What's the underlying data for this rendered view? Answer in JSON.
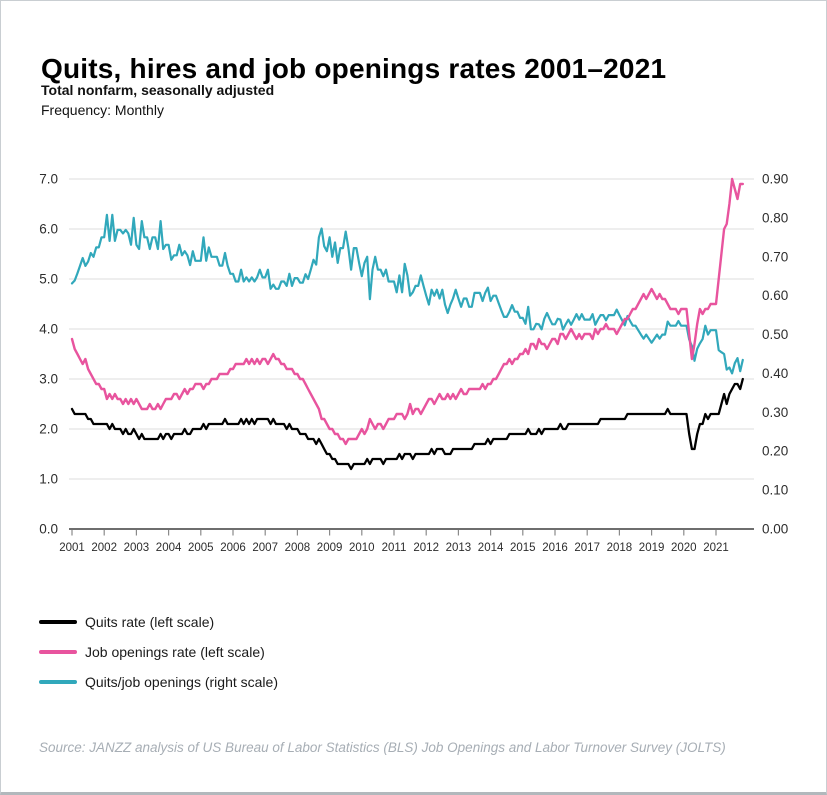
{
  "header": {
    "title": "Quits, hires and job openings rates 2001–2021",
    "subtitle": "Total nonfarm, seasonally adjusted",
    "frequency": "Frequency: Monthly"
  },
  "legend": [
    {
      "label": "Quits rate (left scale)",
      "color": "#000000"
    },
    {
      "label": "Job openings rate (left scale)",
      "color": "#e8549e"
    },
    {
      "label": "Quits/job openings (right scale)",
      "color": "#31a8bb"
    }
  ],
  "source": "Source: JANZZ analysis of US Bureau of Labor Statistics (BLS) Job Openings and Labor Turnover Survey (JOLTS)",
  "colors": {
    "quits": "#000000",
    "job_openings": "#e8549e",
    "ratio": "#31a8bb",
    "gridline": "#dcdcdc",
    "axis": "#6e6e6e",
    "tick": "#8a8a8a",
    "axis_label": "#2d2d2d"
  },
  "chart_data": {
    "type": "line",
    "title": "Quits, hires and job openings rates 2001–2021",
    "frequency": "monthly",
    "x_start": "2001-01",
    "x_end": "2021-11",
    "x_tick_years": [
      "2001",
      "2002",
      "2003",
      "2004",
      "2005",
      "2006",
      "2007",
      "2008",
      "2009",
      "2010",
      "2011",
      "2012",
      "2013",
      "2014",
      "2015",
      "2016",
      "2017",
      "2018",
      "2019",
      "2020",
      "2021"
    ],
    "grid": true,
    "legend_position": "bottom-left",
    "left_axis": {
      "min": 0,
      "max": 7,
      "ticks": [
        "0.0",
        "1.0",
        "2.0",
        "3.0",
        "4.0",
        "5.0",
        "6.0",
        "7.0"
      ]
    },
    "right_axis": {
      "min": 0,
      "max": 0.9,
      "ticks": [
        "0.00",
        "0.10",
        "0.20",
        "0.30",
        "0.40",
        "0.50",
        "0.60",
        "0.70",
        "0.80",
        "0.90"
      ]
    },
    "series": [
      {
        "name": "Quits rate",
        "axis": "left",
        "color": "#000000",
        "values": [
          2.4,
          2.3,
          2.3,
          2.3,
          2.3,
          2.3,
          2.2,
          2.2,
          2.1,
          2.1,
          2.1,
          2.1,
          2.1,
          2.1,
          2.0,
          2.1,
          2.0,
          2.0,
          2.0,
          1.9,
          2.0,
          1.9,
          1.9,
          2.0,
          1.9,
          1.8,
          1.9,
          1.8,
          1.8,
          1.8,
          1.8,
          1.8,
          1.8,
          1.9,
          1.8,
          1.9,
          1.9,
          1.8,
          1.9,
          1.9,
          1.9,
          1.9,
          2.0,
          1.9,
          1.9,
          2.0,
          2.0,
          2.0,
          2.0,
          2.1,
          2.0,
          2.1,
          2.1,
          2.1,
          2.1,
          2.1,
          2.1,
          2.2,
          2.1,
          2.1,
          2.1,
          2.1,
          2.1,
          2.2,
          2.1,
          2.2,
          2.1,
          2.2,
          2.1,
          2.2,
          2.2,
          2.2,
          2.2,
          2.2,
          2.1,
          2.2,
          2.1,
          2.1,
          2.1,
          2.1,
          2.0,
          2.1,
          2.0,
          2.0,
          2.0,
          1.9,
          1.9,
          1.9,
          1.8,
          1.8,
          1.8,
          1.7,
          1.8,
          1.7,
          1.6,
          1.5,
          1.5,
          1.4,
          1.4,
          1.3,
          1.3,
          1.3,
          1.3,
          1.3,
          1.2,
          1.3,
          1.3,
          1.3,
          1.3,
          1.3,
          1.4,
          1.3,
          1.4,
          1.4,
          1.4,
          1.4,
          1.3,
          1.4,
          1.4,
          1.4,
          1.4,
          1.4,
          1.5,
          1.4,
          1.5,
          1.5,
          1.5,
          1.4,
          1.5,
          1.5,
          1.5,
          1.5,
          1.5,
          1.5,
          1.6,
          1.5,
          1.6,
          1.6,
          1.6,
          1.5,
          1.5,
          1.5,
          1.6,
          1.6,
          1.6,
          1.6,
          1.6,
          1.6,
          1.6,
          1.6,
          1.7,
          1.7,
          1.7,
          1.7,
          1.7,
          1.8,
          1.7,
          1.8,
          1.8,
          1.8,
          1.8,
          1.8,
          1.8,
          1.9,
          1.9,
          1.9,
          1.9,
          1.9,
          1.9,
          1.9,
          2.0,
          1.9,
          1.9,
          1.9,
          2.0,
          1.9,
          2.0,
          2.0,
          2.0,
          2.0,
          2.0,
          2.0,
          2.1,
          2.0,
          2.0,
          2.1,
          2.1,
          2.1,
          2.1,
          2.1,
          2.1,
          2.1,
          2.1,
          2.1,
          2.1,
          2.1,
          2.1,
          2.2,
          2.2,
          2.2,
          2.2,
          2.2,
          2.2,
          2.2,
          2.2,
          2.2,
          2.2,
          2.3,
          2.3,
          2.3,
          2.3,
          2.3,
          2.3,
          2.3,
          2.3,
          2.3,
          2.3,
          2.3,
          2.3,
          2.3,
          2.3,
          2.3,
          2.4,
          2.3,
          2.3,
          2.3,
          2.3,
          2.3,
          2.3,
          2.3,
          1.9,
          1.6,
          1.6,
          1.9,
          2.1,
          2.1,
          2.3,
          2.2,
          2.3,
          2.3,
          2.3,
          2.3,
          2.5,
          2.7,
          2.5,
          2.7,
          2.8,
          2.9,
          2.9,
          2.8,
          3.0
        ]
      },
      {
        "name": "Job openings rate",
        "axis": "left",
        "color": "#e8549e",
        "values": [
          3.8,
          3.6,
          3.5,
          3.4,
          3.3,
          3.4,
          3.2,
          3.1,
          3.0,
          2.9,
          2.9,
          2.8,
          2.8,
          2.6,
          2.7,
          2.6,
          2.7,
          2.6,
          2.6,
          2.5,
          2.6,
          2.5,
          2.6,
          2.5,
          2.6,
          2.5,
          2.4,
          2.4,
          2.4,
          2.5,
          2.4,
          2.4,
          2.5,
          2.4,
          2.5,
          2.6,
          2.6,
          2.6,
          2.7,
          2.7,
          2.6,
          2.7,
          2.8,
          2.7,
          2.8,
          2.8,
          2.9,
          2.9,
          2.9,
          2.8,
          2.9,
          2.9,
          3.0,
          3.0,
          3.0,
          3.1,
          3.1,
          3.1,
          3.1,
          3.2,
          3.2,
          3.3,
          3.3,
          3.3,
          3.3,
          3.4,
          3.3,
          3.4,
          3.3,
          3.4,
          3.3,
          3.4,
          3.4,
          3.3,
          3.4,
          3.5,
          3.4,
          3.4,
          3.3,
          3.3,
          3.2,
          3.2,
          3.2,
          3.1,
          3.1,
          3.0,
          3.0,
          2.9,
          2.8,
          2.7,
          2.6,
          2.5,
          2.4,
          2.2,
          2.2,
          2.1,
          2.0,
          2.0,
          1.9,
          1.9,
          1.8,
          1.8,
          1.7,
          1.8,
          1.8,
          1.8,
          1.8,
          1.9,
          2.0,
          1.9,
          2.0,
          2.2,
          2.1,
          2.0,
          2.1,
          2.1,
          2.0,
          2.1,
          2.2,
          2.2,
          2.2,
          2.3,
          2.3,
          2.3,
          2.2,
          2.3,
          2.5,
          2.3,
          2.4,
          2.4,
          2.3,
          2.4,
          2.5,
          2.6,
          2.6,
          2.5,
          2.6,
          2.7,
          2.6,
          2.6,
          2.7,
          2.6,
          2.7,
          2.6,
          2.7,
          2.8,
          2.7,
          2.7,
          2.8,
          2.8,
          2.8,
          2.8,
          2.8,
          2.9,
          2.8,
          2.9,
          2.9,
          3.0,
          3.0,
          3.1,
          3.2,
          3.3,
          3.3,
          3.4,
          3.3,
          3.4,
          3.4,
          3.5,
          3.5,
          3.6,
          3.5,
          3.7,
          3.7,
          3.6,
          3.8,
          3.7,
          3.7,
          3.6,
          3.7,
          3.8,
          3.8,
          3.7,
          3.9,
          3.9,
          3.8,
          3.9,
          4.0,
          3.9,
          3.8,
          3.9,
          3.8,
          3.9,
          3.9,
          3.9,
          3.8,
          4.0,
          3.9,
          4.0,
          4.0,
          4.1,
          4.0,
          4.0,
          4.0,
          3.9,
          4.0,
          4.1,
          4.2,
          4.2,
          4.3,
          4.4,
          4.4,
          4.5,
          4.6,
          4.7,
          4.6,
          4.7,
          4.8,
          4.7,
          4.6,
          4.7,
          4.6,
          4.6,
          4.5,
          4.4,
          4.4,
          4.4,
          4.3,
          4.4,
          4.4,
          4.4,
          3.9,
          3.4,
          3.7,
          4.1,
          4.4,
          4.3,
          4.4,
          4.4,
          4.5,
          4.5,
          4.5,
          5.0,
          5.5,
          6.0,
          6.1,
          6.5,
          7.0,
          6.8,
          6.6,
          6.9,
          6.9
        ]
      },
      {
        "name": "Quits/job openings",
        "axis": "right",
        "color": "#31a8bb",
        "derived": "ratio_of_series_0_to_series_1"
      }
    ]
  }
}
